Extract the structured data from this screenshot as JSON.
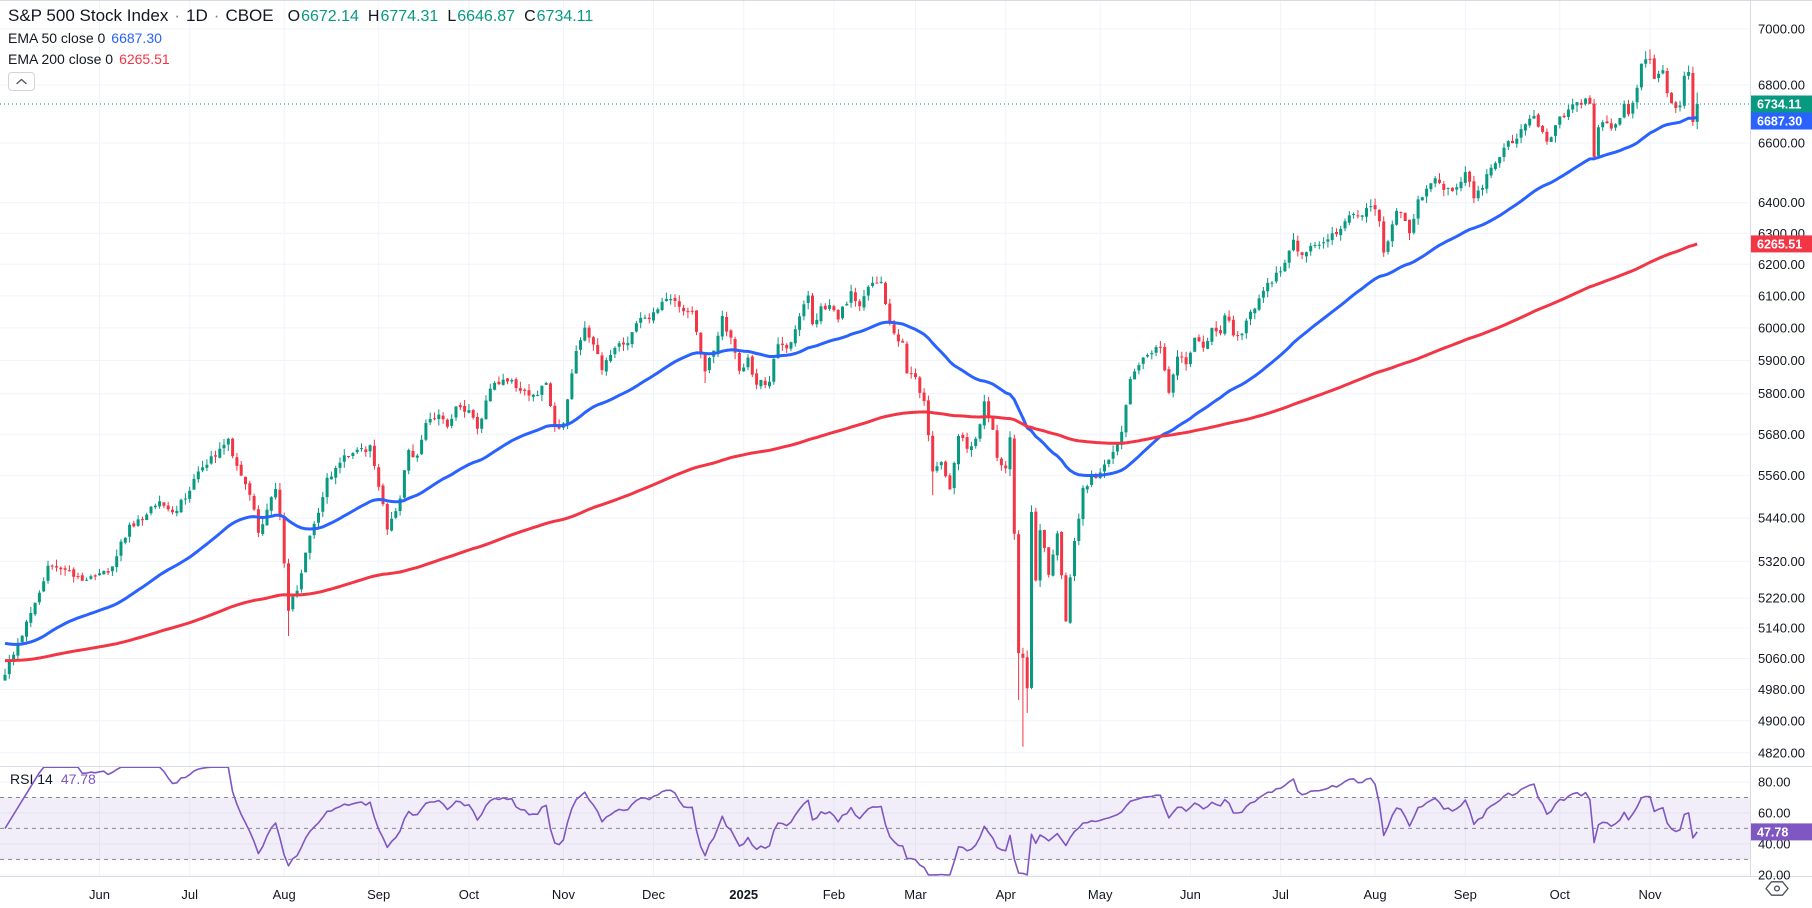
{
  "header": {
    "title": "S&P 500 Stock Index",
    "dot": "·",
    "interval": "1D",
    "exchange": "CBOE",
    "ohlc": {
      "o_label": "O",
      "o": "6672.14",
      "h_label": "H",
      "h": "6774.31",
      "l_label": "L",
      "l": "6646.87",
      "c_label": "C",
      "c": "6734.11"
    },
    "ema50_label": "EMA 50 close 0",
    "ema50_value": "6687.30",
    "ema200_label": "EMA 200 close 0",
    "ema200_value": "6265.51"
  },
  "rsi_pane": {
    "label": "RSI 14",
    "value": "47.78"
  },
  "price_badges": [
    {
      "label": "6734.11",
      "price": 6734.11,
      "color": "#089981"
    },
    {
      "label": "6687.30",
      "price": 6687.3,
      "color": "#2962FF"
    },
    {
      "label": "6265.51",
      "price": 6265.51,
      "color": "#F23645"
    }
  ],
  "rsi_badge": {
    "label": "47.78",
    "value": 47.78,
    "color": "#7E57C2"
  },
  "colors": {
    "up": "#089981",
    "down": "#F23645",
    "ema50": "#2962FF",
    "ema200": "#F23645",
    "rsi": "#7E57C2",
    "rsi_band_fill": "rgba(126,87,194,0.10)",
    "guide": "#787B86",
    "grid": "#F0F3FA",
    "separator": "#D8DBE0",
    "axis_text": "#131722",
    "close_line": "#089981",
    "badge_text": "#FFFFFF",
    "bg": "#FFFFFF"
  },
  "chart_data": {
    "type": "candlestick",
    "title": "S&P 500 Stock Index",
    "interval": "1D",
    "exchange": "CBOE",
    "price_scale": "log",
    "legend_last_bar": {
      "open": 6672.14,
      "high": 6774.31,
      "low": 6646.87,
      "close": 6734.11
    },
    "price_axis": {
      "min": 4807,
      "max": 7105,
      "ticks": [
        7000,
        6800,
        6600,
        6400,
        6300,
        6200,
        6100,
        6000,
        5900,
        5800,
        5680,
        5560,
        5440,
        5320,
        5220,
        5140,
        5060,
        4980,
        4900,
        4820
      ]
    },
    "rsi_axis": {
      "min": 19.3,
      "max": 90.3,
      "ticks": [
        80,
        60,
        40,
        20
      ],
      "guides": {
        "upper": 70,
        "middle": 50,
        "lower": 30
      }
    },
    "x_axis": {
      "labels": [
        {
          "label": "Jun",
          "day": 22
        },
        {
          "label": "Jul",
          "day": 43
        },
        {
          "label": "Aug",
          "day": 65
        },
        {
          "label": "Sep",
          "day": 87
        },
        {
          "label": "Oct",
          "day": 108
        },
        {
          "label": "Nov",
          "day": 130
        },
        {
          "label": "Dec",
          "day": 151
        },
        {
          "label": "2025",
          "day": 172,
          "bold": true
        },
        {
          "label": "Feb",
          "day": 193
        },
        {
          "label": "Mar",
          "day": 212
        },
        {
          "label": "Apr",
          "day": 233
        },
        {
          "label": "May",
          "day": 255
        },
        {
          "label": "Jun",
          "day": 276
        },
        {
          "label": "Jul",
          "day": 297
        },
        {
          "label": "Aug",
          "day": 319
        },
        {
          "label": "Sep",
          "day": 340
        },
        {
          "label": "Oct",
          "day": 362
        },
        {
          "label": "Nov",
          "day": 383
        }
      ]
    },
    "days": 395,
    "last_candle": {
      "o": 6672.14,
      "h": 6774.31,
      "l": 6646.87,
      "c": 6734.11
    },
    "close_anchors": [
      [
        0,
        5018
      ],
      [
        3,
        5100
      ],
      [
        6,
        5180
      ],
      [
        10,
        5308
      ],
      [
        14,
        5297
      ],
      [
        18,
        5267
      ],
      [
        21,
        5278
      ],
      [
        25,
        5306
      ],
      [
        29,
        5421
      ],
      [
        32,
        5434
      ],
      [
        36,
        5487
      ],
      [
        40,
        5460
      ],
      [
        45,
        5572
      ],
      [
        49,
        5615
      ],
      [
        52,
        5667
      ],
      [
        54,
        5588
      ],
      [
        57,
        5505
      ],
      [
        59,
        5399
      ],
      [
        61,
        5463
      ],
      [
        63,
        5522
      ],
      [
        64,
        5446
      ],
      [
        66,
        5186
      ],
      [
        68,
        5240
      ],
      [
        70,
        5344
      ],
      [
        73,
        5455
      ],
      [
        75,
        5554
      ],
      [
        78,
        5597
      ],
      [
        81,
        5625
      ],
      [
        85,
        5648
      ],
      [
        87,
        5528
      ],
      [
        89,
        5408
      ],
      [
        92,
        5495
      ],
      [
        94,
        5634
      ],
      [
        96,
        5618
      ],
      [
        98,
        5713
      ],
      [
        101,
        5738
      ],
      [
        103,
        5702
      ],
      [
        105,
        5762
      ],
      [
        108,
        5751
      ],
      [
        110,
        5696
      ],
      [
        113,
        5815
      ],
      [
        116,
        5842
      ],
      [
        118,
        5841
      ],
      [
        121,
        5808
      ],
      [
        123,
        5797
      ],
      [
        126,
        5832
      ],
      [
        128,
        5705
      ],
      [
        130,
        5712
      ],
      [
        131,
        5783
      ],
      [
        133,
        5929
      ],
      [
        135,
        6001
      ],
      [
        137,
        5949
      ],
      [
        139,
        5871
      ],
      [
        141,
        5917
      ],
      [
        144,
        5949
      ],
      [
        146,
        5987
      ],
      [
        149,
        6032
      ],
      [
        151,
        6049
      ],
      [
        154,
        6090
      ],
      [
        156,
        6084
      ],
      [
        158,
        6052
      ],
      [
        160,
        6051
      ],
      [
        163,
        5867
      ],
      [
        165,
        5930
      ],
      [
        167,
        6037
      ],
      [
        169,
        5970
      ],
      [
        171,
        5869
      ],
      [
        173,
        5909
      ],
      [
        175,
        5827
      ],
      [
        178,
        5836
      ],
      [
        180,
        5950
      ],
      [
        182,
        5937
      ],
      [
        184,
        5996
      ],
      [
        187,
        6101
      ],
      [
        188,
        6012
      ],
      [
        190,
        6067
      ],
      [
        192,
        6071
      ],
      [
        194,
        6026
      ],
      [
        197,
        6115
      ],
      [
        199,
        6068
      ],
      [
        201,
        6129
      ],
      [
        204,
        6144
      ],
      [
        206,
        6013
      ],
      [
        207,
        5983
      ],
      [
        209,
        5955
      ],
      [
        210,
        5861
      ],
      [
        212,
        5850
      ],
      [
        214,
        5778
      ],
      [
        216,
        5572
      ],
      [
        218,
        5599
      ],
      [
        220,
        5521
      ],
      [
        222,
        5675
      ],
      [
        224,
        5638
      ],
      [
        226,
        5667
      ],
      [
        228,
        5777
      ],
      [
        230,
        5693
      ],
      [
        231,
        5612
      ],
      [
        233,
        5581
      ],
      [
        234,
        5671
      ],
      [
        235,
        5396
      ],
      [
        236,
        5074
      ],
      [
        237,
        5062
      ],
      [
        238,
        4983
      ],
      [
        239,
        5457
      ],
      [
        240,
        5268
      ],
      [
        241,
        5406
      ],
      [
        243,
        5283
      ],
      [
        245,
        5397
      ],
      [
        247,
        5158
      ],
      [
        249,
        5376
      ],
      [
        251,
        5525
      ],
      [
        253,
        5561
      ],
      [
        255,
        5569
      ],
      [
        257,
        5606
      ],
      [
        259,
        5650
      ],
      [
        260,
        5687
      ],
      [
        262,
        5844
      ],
      [
        264,
        5886
      ],
      [
        266,
        5917
      ],
      [
        268,
        5941
      ],
      [
        269,
        5940
      ],
      [
        271,
        5803
      ],
      [
        273,
        5912
      ],
      [
        275,
        5889
      ],
      [
        277,
        5970
      ],
      [
        279,
        5939
      ],
      [
        281,
        6000
      ],
      [
        283,
        5983
      ],
      [
        284,
        6039
      ],
      [
        286,
        5977
      ],
      [
        288,
        5982
      ],
      [
        290,
        6050
      ],
      [
        292,
        6092
      ],
      [
        294,
        6141
      ],
      [
        296,
        6173
      ],
      [
        298,
        6205
      ],
      [
        300,
        6279
      ],
      [
        302,
        6230
      ],
      [
        304,
        6259
      ],
      [
        306,
        6263
      ],
      [
        308,
        6280
      ],
      [
        310,
        6297
      ],
      [
        312,
        6339
      ],
      [
        314,
        6363
      ],
      [
        316,
        6358
      ],
      [
        318,
        6389
      ],
      [
        320,
        6339
      ],
      [
        321,
        6238
      ],
      [
        323,
        6329
      ],
      [
        324,
        6373
      ],
      [
        326,
        6340
      ],
      [
        327,
        6300
      ],
      [
        329,
        6411
      ],
      [
        331,
        6446
      ],
      [
        333,
        6481
      ],
      [
        334,
        6466
      ],
      [
        336,
        6449
      ],
      [
        337,
        6439
      ],
      [
        339,
        6469
      ],
      [
        340,
        6502
      ],
      [
        342,
        6415
      ],
      [
        344,
        6449
      ],
      [
        345,
        6495
      ],
      [
        347,
        6532
      ],
      [
        349,
        6584
      ],
      [
        351,
        6600
      ],
      [
        352,
        6615
      ],
      [
        354,
        6664
      ],
      [
        356,
        6693
      ],
      [
        358,
        6638
      ],
      [
        359,
        6605
      ],
      [
        361,
        6661
      ],
      [
        363,
        6688
      ],
      [
        364,
        6715
      ],
      [
        366,
        6740
      ],
      [
        368,
        6753
      ],
      [
        369,
        6735
      ],
      [
        370,
        6553
      ],
      [
        371,
        6654
      ],
      [
        375,
        6664
      ],
      [
        377,
        6735
      ],
      [
        378,
        6699
      ],
      [
        379,
        6738
      ],
      [
        381,
        6875
      ],
      [
        382,
        6891
      ],
      [
        383,
        6890
      ],
      [
        384,
        6822
      ],
      [
        385,
        6840
      ],
      [
        386,
        6852
      ],
      [
        387,
        6772
      ],
      [
        389,
        6720
      ],
      [
        390,
        6729
      ],
      [
        391,
        6833
      ],
      [
        392,
        6846
      ],
      [
        393,
        6672
      ],
      [
        394,
        6734.11
      ]
    ],
    "wick_low_overrides": {
      "66": 5119,
      "163": 5832,
      "216": 5504,
      "236": 4953,
      "237": 4835,
      "238": 4920,
      "370": 6541
    },
    "wick_high_overrides": {
      "52": 5670,
      "135": 6017,
      "154": 6099,
      "204": 6147,
      "382": 6920,
      "383": 6926,
      "393": 6865
    },
    "indicators": {
      "ema50": {
        "period": 50,
        "source": "close",
        "offset": 0,
        "seed": 5103,
        "last": 6687.3,
        "color": "#2962FF"
      },
      "ema200": {
        "period": 200,
        "source": "close",
        "offset": 0,
        "seed": 5055,
        "last": 6265.51,
        "color": "#F23645"
      },
      "rsi": {
        "period": 14,
        "last": 47.78,
        "overbought": 70,
        "middle": 50,
        "oversold": 30
      }
    }
  }
}
